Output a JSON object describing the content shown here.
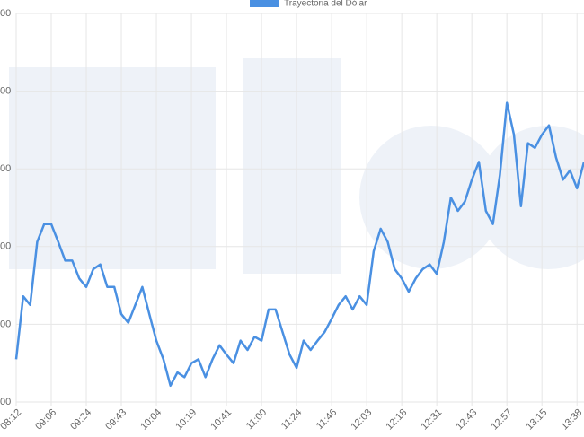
{
  "chart_data": {
    "type": "line",
    "categories": [
      "08:12",
      null,
      null,
      null,
      null,
      "09:06",
      null,
      null,
      null,
      null,
      "09:24",
      null,
      null,
      null,
      null,
      "09:43",
      null,
      null,
      null,
      null,
      "10:04",
      null,
      null,
      null,
      null,
      "10:19",
      null,
      null,
      null,
      null,
      "10:41",
      null,
      null,
      null,
      null,
      "11:00",
      null,
      null,
      null,
      null,
      "11:24",
      null,
      null,
      null,
      null,
      "11:46",
      null,
      null,
      null,
      null,
      "12:03",
      null,
      null,
      null,
      null,
      "12:18",
      null,
      null,
      null,
      null,
      "12:31",
      null,
      null,
      null,
      null,
      "12:43",
      null,
      null,
      null,
      null,
      "12:57",
      null,
      null,
      null,
      null,
      "13:15",
      null,
      null,
      null,
      null,
      "13:38",
      null
    ],
    "series": [
      {
        "name": "Trayectoria del Dólar",
        "color": "#4a90e2",
        "values": [
          0.55,
          1.36,
          1.25,
          2.06,
          2.29,
          2.29,
          2.06,
          1.82,
          1.82,
          1.59,
          1.48,
          1.71,
          1.77,
          1.48,
          1.48,
          1.13,
          1.02,
          1.25,
          1.48,
          1.13,
          0.79,
          0.55,
          0.21,
          0.38,
          0.32,
          0.5,
          0.55,
          0.32,
          0.55,
          0.73,
          0.61,
          0.5,
          0.79,
          0.67,
          0.84,
          0.79,
          1.19,
          1.19,
          0.9,
          0.61,
          0.44,
          0.79,
          0.67,
          0.79,
          0.9,
          1.07,
          1.25,
          1.36,
          1.19,
          1.36,
          1.25,
          1.94,
          2.23,
          2.06,
          1.71,
          1.59,
          1.42,
          1.59,
          1.71,
          1.77,
          1.65,
          2.06,
          2.63,
          2.46,
          2.58,
          2.86,
          3.09,
          2.46,
          2.29,
          2.92,
          3.85,
          3.44,
          2.52,
          3.33,
          3.27,
          3.44,
          3.56,
          3.15,
          2.86,
          2.98,
          2.75,
          3.09
        ]
      }
    ],
    "ylim": [
      0,
      5
    ],
    "yticks": [
      {
        "value": 0,
        "label": "00"
      },
      {
        "value": 1,
        "label": "00"
      },
      {
        "value": 2,
        "label": "00"
      },
      {
        "value": 3,
        "label": "00"
      },
      {
        "value": 4,
        "label": "00"
      },
      {
        "value": 5,
        "label": "00"
      }
    ],
    "grid": true
  }
}
